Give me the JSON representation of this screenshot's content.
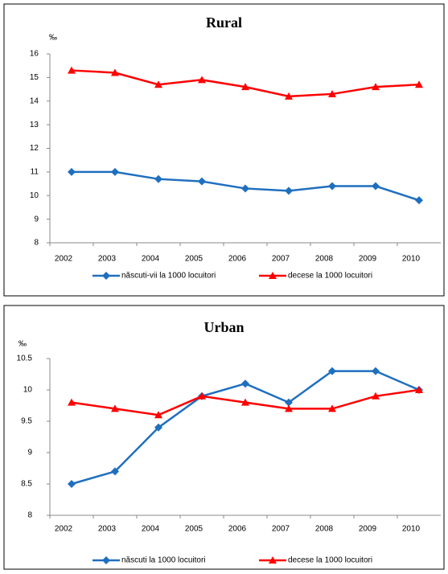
{
  "chart_data": [
    {
      "type": "line",
      "title": "Rural",
      "y_label": "‰",
      "categories": [
        "2002",
        "2003",
        "2004",
        "2005",
        "2006",
        "2007",
        "2008",
        "2009",
        "2010"
      ],
      "series": [
        {
          "name": "născuti-vii la 1000 locuitori",
          "color": "#1f6fbf",
          "marker": "diamond",
          "values": [
            11,
            11,
            10.7,
            10.6,
            10.3,
            10.2,
            10.4,
            10.4,
            9.8
          ]
        },
        {
          "name": "decese la 1000 locuitori",
          "color": "#ff0000",
          "marker": "triangle",
          "values": [
            15.3,
            15.2,
            14.7,
            14.9,
            14.6,
            14.2,
            14.3,
            14.6,
            14.7
          ]
        }
      ],
      "ylim": [
        8,
        16
      ],
      "yticks": [
        8,
        9,
        10,
        11,
        12,
        13,
        14,
        15,
        16
      ],
      "grid": false
    },
    {
      "type": "line",
      "title": "Urban",
      "y_label": "‰",
      "categories": [
        "2002",
        "2003",
        "2004",
        "2005",
        "2006",
        "2007",
        "2008",
        "2009",
        "2010"
      ],
      "series": [
        {
          "name": "născuti la 1000 locuitori",
          "color": "#1f6fbf",
          "marker": "diamond",
          "values": [
            8.5,
            8.7,
            9.4,
            9.9,
            10.1,
            9.8,
            10.3,
            10.3,
            10.0
          ]
        },
        {
          "name": "decese la 1000 locuitori",
          "color": "#ff0000",
          "marker": "triangle",
          "values": [
            9.8,
            9.7,
            9.6,
            9.9,
            9.8,
            9.7,
            9.7,
            9.9,
            10.0
          ]
        }
      ],
      "ylim": [
        8,
        10.5
      ],
      "yticks": [
        8,
        8.5,
        9,
        9.5,
        10,
        {
          "value": 10.5,
          "label": "10.5"
        }
      ],
      "grid": false
    }
  ]
}
